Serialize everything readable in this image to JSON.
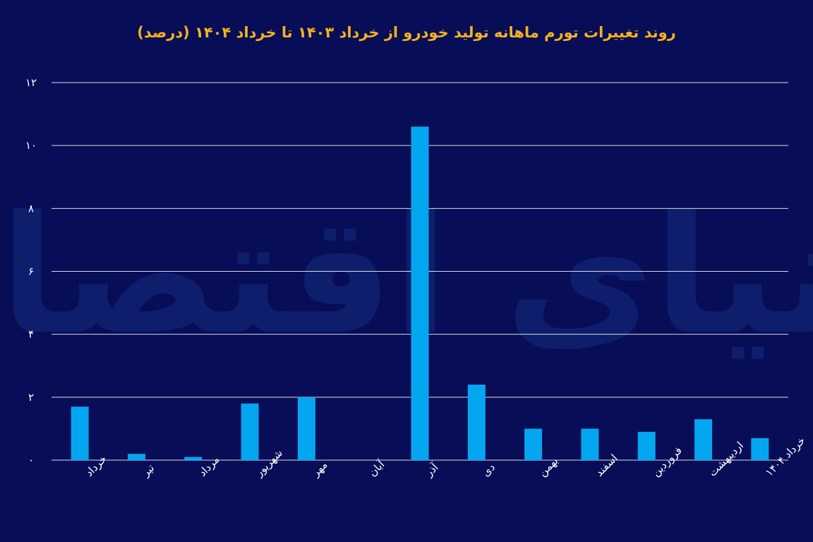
{
  "colors": {
    "background": "#070d57",
    "title": "#f5b21c",
    "bar": "#04a6ef",
    "grid": "#ffffff",
    "text": "#ffffff",
    "watermark": "#0f2070"
  },
  "watermark": {
    "text": "دنیای اقتصاد"
  },
  "chart_data": {
    "type": "bar",
    "title": "روند تغییرات تورم ماهانه تولید خودرو از خرداد ۱۴۰۳ تا خرداد ۱۴۰۴ (درصد)",
    "xlabel": "",
    "ylabel": "",
    "ylim": [
      0,
      12
    ],
    "yticks": [
      0,
      2,
      4,
      6,
      8,
      10,
      12
    ],
    "ytick_labels": [
      "۰",
      "۲",
      "۴",
      "۶",
      "۸",
      "۱۰",
      "۱۲"
    ],
    "grid": true,
    "legend": "none",
    "categories": [
      "خرداد",
      "تیر",
      "مرداد",
      "شهریور",
      "مهر",
      "آبان",
      "آذر",
      "دی",
      "بهمن",
      "اسفند",
      "فروردین",
      "اردیبهشت",
      "خرداد ۱۴۰۴"
    ],
    "values": [
      1.7,
      0.2,
      0.1,
      1.8,
      2.0,
      0,
      10.6,
      2.4,
      1.0,
      1.0,
      0.9,
      1.3,
      0.7
    ]
  }
}
